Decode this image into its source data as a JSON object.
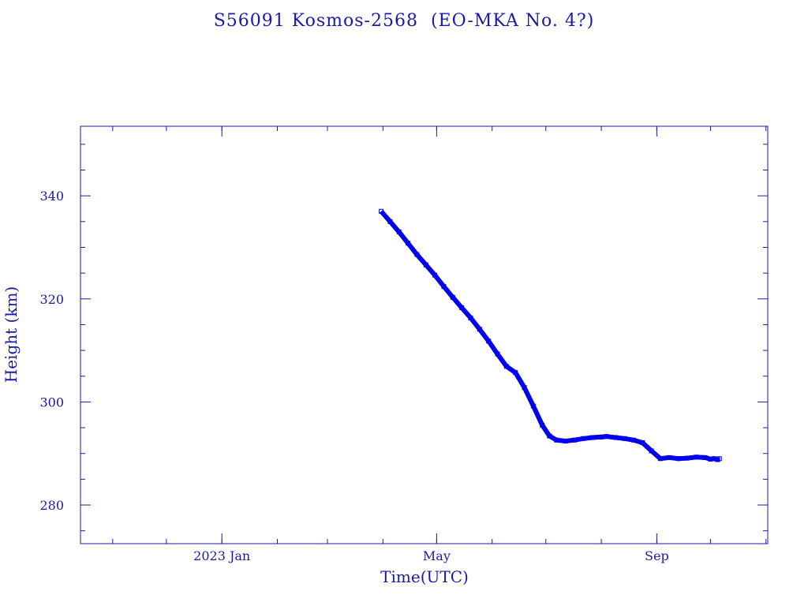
{
  "chart_data": {
    "type": "line",
    "title": "S56091 Kosmos-2568  (EO-MKA No. 4?)",
    "xlabel": "Time(UTC)",
    "ylabel": "Height (km)",
    "xlim": [
      "2022-10-14",
      "2023-11-02"
    ],
    "ylim": [
      272.5,
      353.5
    ],
    "x_ticks": [
      {
        "date": "2023-01-01",
        "label": "2023 Jan"
      },
      {
        "date": "2023-05-01",
        "label": "May"
      },
      {
        "date": "2023-09-01",
        "label": "Sep"
      }
    ],
    "y_ticks": [
      280,
      300,
      320,
      340
    ],
    "grid": false,
    "color": "#0000ee",
    "series": [
      {
        "x": [
          "2023-03-31",
          "2023-04-05",
          "2023-04-10",
          "2023-04-15",
          "2023-04-20",
          "2023-04-25",
          "2023-04-30",
          "2023-05-05",
          "2023-05-10",
          "2023-05-15",
          "2023-05-20",
          "2023-05-25",
          "2023-05-30",
          "2023-06-04",
          "2023-06-09",
          "2023-06-14",
          "2023-06-19",
          "2023-06-24",
          "2023-06-29",
          "2023-07-03",
          "2023-07-07",
          "2023-07-12",
          "2023-07-17",
          "2023-07-22",
          "2023-07-27",
          "2023-08-01",
          "2023-08-04",
          "2023-08-09",
          "2023-08-14",
          "2023-08-19",
          "2023-08-24",
          "2023-08-29",
          "2023-09-03",
          "2023-09-08",
          "2023-09-13",
          "2023-09-18",
          "2023-09-23",
          "2023-09-28",
          "2023-10-01",
          "2023-10-03",
          "2023-10-05",
          "2023-10-06"
        ],
        "values": [
          337.0,
          335.0,
          333.0,
          330.8,
          328.6,
          326.6,
          324.6,
          322.4,
          320.3,
          318.3,
          316.3,
          314.1,
          311.8,
          309.3,
          306.9,
          305.7,
          302.8,
          299.2,
          295.5,
          293.4,
          292.6,
          292.4,
          292.6,
          292.9,
          293.1,
          293.2,
          293.3,
          293.1,
          292.9,
          292.6,
          292.1,
          290.5,
          289.0,
          289.2,
          289.0,
          289.1,
          289.3,
          289.2,
          288.9,
          289.0,
          288.8,
          289.0
        ]
      }
    ]
  }
}
